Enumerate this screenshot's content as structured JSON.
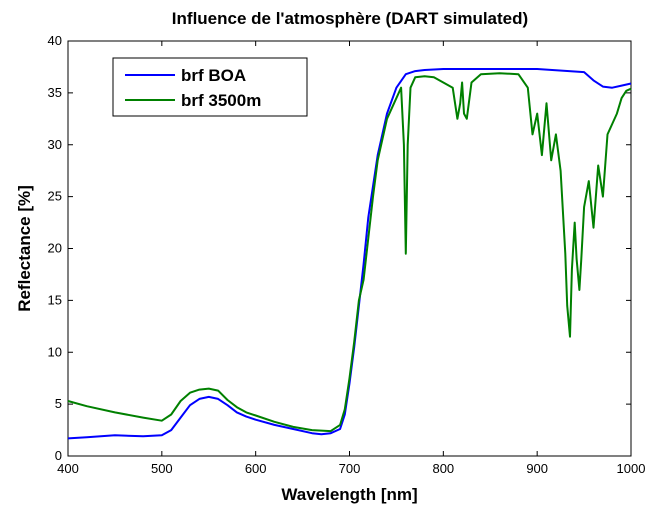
{
  "chart_data": {
    "type": "line",
    "title": "Influence de l'atmosphère (DART simulated)",
    "xlabel": "Wavelength [nm]",
    "ylabel": "Reflectance [%]",
    "xlim": [
      400,
      1000
    ],
    "ylim": [
      0,
      40
    ],
    "xticks": [
      400,
      500,
      600,
      700,
      800,
      900,
      1000
    ],
    "yticks": [
      0,
      5,
      10,
      15,
      20,
      25,
      30,
      35,
      40
    ],
    "grid": false,
    "legend_position": "top-left",
    "series": [
      {
        "name": "brf BOA",
        "color": "#0000ff",
        "x": [
          400,
          420,
          450,
          480,
          500,
          510,
          520,
          530,
          540,
          550,
          560,
          570,
          580,
          590,
          600,
          620,
          640,
          660,
          670,
          680,
          690,
          695,
          700,
          705,
          710,
          715,
          720,
          730,
          740,
          750,
          760,
          770,
          780,
          800,
          850,
          900,
          950,
          960,
          970,
          980,
          990,
          1000
        ],
        "y": [
          1.7,
          1.8,
          2.0,
          1.9,
          2.0,
          2.5,
          3.7,
          4.9,
          5.5,
          5.7,
          5.5,
          4.9,
          4.2,
          3.8,
          3.5,
          3.0,
          2.6,
          2.2,
          2.1,
          2.2,
          2.6,
          4.0,
          7.0,
          10.5,
          14.5,
          18.5,
          23.0,
          29.0,
          33.0,
          35.5,
          36.8,
          37.1,
          37.2,
          37.3,
          37.3,
          37.3,
          37.0,
          36.2,
          35.6,
          35.5,
          35.7,
          35.9
        ]
      },
      {
        "name": "brf 3500m",
        "color": "#008000",
        "x": [
          400,
          420,
          450,
          480,
          500,
          510,
          520,
          530,
          540,
          550,
          560,
          570,
          580,
          590,
          600,
          620,
          640,
          660,
          680,
          690,
          695,
          700,
          705,
          710,
          715,
          720,
          725,
          730,
          740,
          750,
          755,
          758,
          760,
          762,
          765,
          770,
          780,
          790,
          800,
          810,
          815,
          818,
          820,
          822,
          825,
          830,
          840,
          860,
          880,
          890,
          895,
          900,
          905,
          910,
          915,
          920,
          925,
          930,
          932,
          935,
          937,
          940,
          942,
          945,
          947,
          950,
          955,
          960,
          965,
          970,
          975,
          980,
          985,
          990,
          995,
          1000
        ],
        "y": [
          5.3,
          4.8,
          4.2,
          3.7,
          3.4,
          4.0,
          5.3,
          6.1,
          6.4,
          6.5,
          6.3,
          5.4,
          4.7,
          4.2,
          3.9,
          3.3,
          2.8,
          2.5,
          2.4,
          3.0,
          4.5,
          7.5,
          11.0,
          15.0,
          17.0,
          21.0,
          25.0,
          28.5,
          32.5,
          34.5,
          35.5,
          30.0,
          19.5,
          30.0,
          35.5,
          36.5,
          36.6,
          36.5,
          36.0,
          35.5,
          32.5,
          34.0,
          36.0,
          33.0,
          32.5,
          36.0,
          36.8,
          36.9,
          36.8,
          35.5,
          31.0,
          33.0,
          29.0,
          34.0,
          28.5,
          31.0,
          27.5,
          19.5,
          14.5,
          11.5,
          18.0,
          22.5,
          19.0,
          16.0,
          19.0,
          24.0,
          26.5,
          22.0,
          28.0,
          25.0,
          31.0,
          32.0,
          33.0,
          34.5,
          35.2,
          35.4
        ]
      }
    ]
  }
}
